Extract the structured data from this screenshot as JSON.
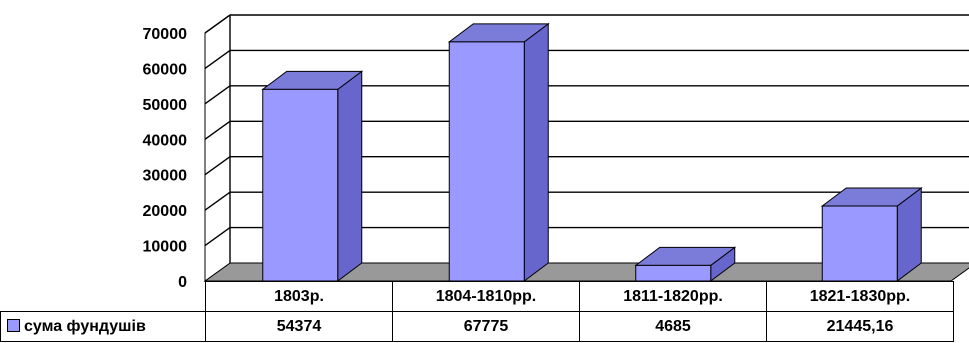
{
  "chart_data": {
    "type": "bar",
    "categories": [
      "1803р.",
      "1804-1810рр.",
      "1811-1820рр.",
      "1821-1830рр."
    ],
    "series": [
      {
        "name": "сума фундушів",
        "values": [
          54374,
          67775,
          4685,
          21445.16
        ],
        "value_labels": [
          "54374",
          "67775",
          "4685",
          "21445,16"
        ]
      }
    ],
    "y_ticks": [
      "0",
      "10000",
      "20000",
      "30000",
      "40000",
      "50000",
      "60000",
      "70000"
    ],
    "ylim": [
      0,
      70000
    ],
    "grid": true,
    "legend": "in data table, left",
    "colors": {
      "bar_front": "#9999ff",
      "bar_side": "#6666cc",
      "bar_top": "#7b7bd9",
      "floor": "#999999",
      "wall_grid": "#000000"
    }
  }
}
